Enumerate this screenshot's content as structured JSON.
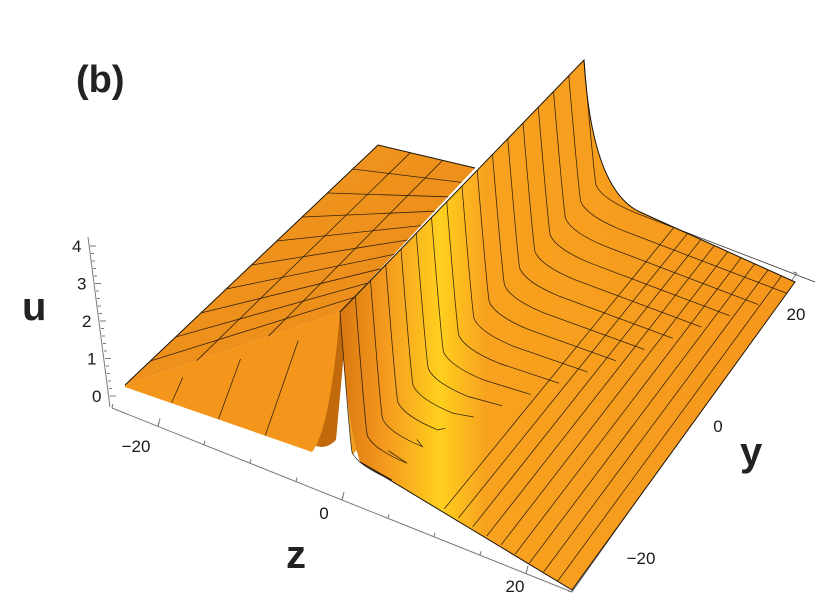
{
  "panel_label": "(b)",
  "chart_data": {
    "type": "surface3d",
    "title": "",
    "xlabel": "z",
    "ylabel": "y",
    "zlabel": "u",
    "xlim": [
      -25,
      25
    ],
    "ylim": [
      -25,
      25
    ],
    "zlim": [
      0,
      4
    ],
    "x_ticks": [
      "−20",
      "0",
      "20"
    ],
    "y_ticks": [
      "20",
      "0",
      "−20"
    ],
    "z_ticks": [
      "0",
      "1",
      "2",
      "3",
      "4"
    ],
    "x_tick_values": [
      -20,
      0,
      20
    ],
    "y_tick_values": [
      20,
      0,
      -20
    ],
    "z_tick_values": [
      0,
      1,
      2,
      3,
      4
    ],
    "surface": "line soliton (kink-shaped wall) along y, located near z = 0",
    "profile": {
      "z": [
        -25,
        -10,
        -5,
        -2,
        -1,
        -0.5,
        0,
        1,
        2,
        5,
        10,
        25
      ],
      "u": [
        0.0,
        0.0,
        0.05,
        0.3,
        0.1,
        0.05,
        4.0,
        1.8,
        1.1,
        0.6,
        0.35,
        0.35
      ]
    },
    "colors": {
      "surface": "#f7961e",
      "highlight": "#ffd21a",
      "shadow": "#c9670a",
      "mesh": "#1a1208"
    },
    "grid": true
  }
}
